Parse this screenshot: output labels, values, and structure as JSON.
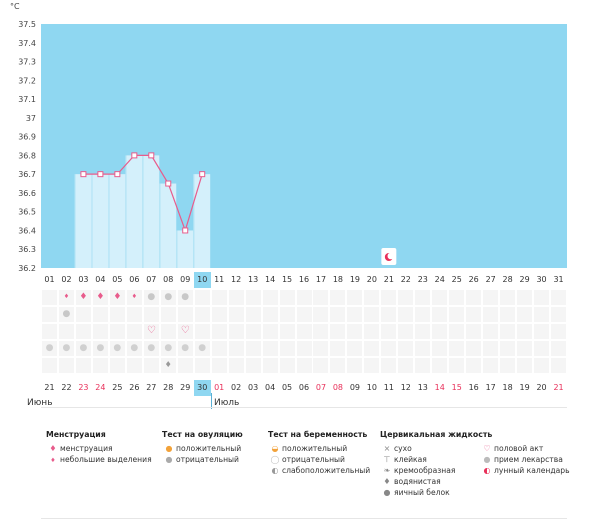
{
  "unit_label": "°C",
  "colors": {
    "sky": "#8fd7f1",
    "bars": "#d4f0fb",
    "line": "#e85c8c",
    "today": "#8fd7f1",
    "weekend_red": "#e8305a"
  },
  "chart_data": {
    "type": "line",
    "y_ticks": [
      "36.2",
      "36.3",
      "36.4",
      "36.5",
      "36.6",
      "36.7",
      "36.8",
      "36.9",
      "37",
      "37.1",
      "37.2",
      "37.3",
      "37.4",
      "37.5"
    ],
    "ylim": [
      36.2,
      37.5
    ],
    "temperatures": [
      {
        "day": "03",
        "value": 36.7
      },
      {
        "day": "04",
        "value": 36.7
      },
      {
        "day": "05",
        "value": 36.7
      },
      {
        "day": "06",
        "value": 36.8
      },
      {
        "day": "07",
        "value": 36.8
      },
      {
        "day": "08",
        "value": 36.65
      },
      {
        "day": "09",
        "value": 36.4
      },
      {
        "day": "10",
        "value": 36.7
      }
    ]
  },
  "cycle_days": [
    "01",
    "02",
    "03",
    "04",
    "05",
    "06",
    "07",
    "08",
    "09",
    "10",
    "11",
    "12",
    "13",
    "14",
    "15",
    "16",
    "17",
    "18",
    "19",
    "20",
    "21",
    "22",
    "23",
    "24",
    "25",
    "26",
    "27",
    "28",
    "29",
    "30",
    "31"
  ],
  "today_cycle_day": "10",
  "moon_day": "21",
  "dates": [
    "21",
    "22",
    "23",
    "24",
    "25",
    "26",
    "27",
    "28",
    "29",
    "30",
    "01",
    "02",
    "03",
    "04",
    "05",
    "06",
    "07",
    "08",
    "09",
    "10",
    "11",
    "12",
    "13",
    "14",
    "15",
    "16",
    "17",
    "18",
    "19",
    "20",
    "21"
  ],
  "red_dates_idx": [
    2,
    3,
    10,
    16,
    17,
    23,
    24,
    30
  ],
  "today_date_idx": 9,
  "month_left": "Июнь",
  "month_right": "Июль",
  "rows": {
    "menstruation": [
      "",
      "small",
      "large",
      "large",
      "large",
      "small",
      "",
      "",
      "",
      "",
      "",
      "",
      "",
      "",
      "",
      "",
      "",
      "",
      "",
      "",
      "",
      "",
      "",
      "",
      "",
      "",
      "",
      "",
      "",
      "",
      ""
    ],
    "ovulation": [
      "",
      "",
      "",
      "",
      "",
      "",
      "neg",
      "neg",
      "neg",
      "",
      "",
      "",
      "",
      "",
      "",
      "",
      "",
      "",
      "",
      "",
      "",
      "",
      "",
      "",
      "",
      "",
      "",
      "",
      "",
      "",
      ""
    ],
    "pregnancy": [
      "",
      "neg",
      "",
      "",
      "",
      "",
      "",
      "",
      "",
      "",
      "",
      "",
      "",
      "",
      "",
      "",
      "",
      "",
      "",
      "",
      "",
      "",
      "",
      "",
      "",
      "",
      "",
      "",
      "",
      "",
      ""
    ],
    "intercourse": [
      "",
      "",
      "",
      "",
      "",
      "",
      "heart",
      "",
      "heart",
      "",
      "",
      "",
      "",
      "",
      "",
      "",
      "",
      "",
      "",
      "",
      "",
      "",
      "",
      "",
      "",
      "",
      "",
      "",
      "",
      "",
      ""
    ],
    "pills": [
      "pill",
      "pill",
      "pill",
      "pill",
      "pill",
      "pill",
      "pill",
      "pill",
      "pill",
      "pill",
      "",
      "",
      "",
      "",
      "",
      "",
      "",
      "",
      "",
      "",
      "",
      "",
      "",
      "",
      "",
      "",
      "",
      "",
      "",
      "",
      ""
    ],
    "mucus": [
      "",
      "",
      "",
      "",
      "",
      "",
      "",
      "drop",
      "",
      "",
      "",
      "",
      "",
      "",
      "",
      "",
      "",
      "",
      "",
      "",
      "",
      "",
      "",
      "",
      "",
      "",
      "",
      "",
      "",
      "",
      ""
    ]
  },
  "legend": {
    "menstruation": {
      "title": "Менструация",
      "items": [
        "менструация",
        "небольшие выделения"
      ]
    },
    "ovulation": {
      "title": "Тест на овуляцию",
      "items": [
        "положительный",
        "отрицательный"
      ]
    },
    "pregnancy": {
      "title": "Тест на беременность",
      "items": [
        "положительный",
        "отрицательный",
        "слабоположительный"
      ]
    },
    "mucus": {
      "title": "Цервикальная жидкость",
      "items": [
        "сухо",
        "клейкая",
        "кремообразная",
        "водянистая",
        "яичный белок"
      ]
    },
    "other": {
      "items": [
        "половой акт",
        "прием лекарства",
        "лунный календарь"
      ]
    }
  }
}
